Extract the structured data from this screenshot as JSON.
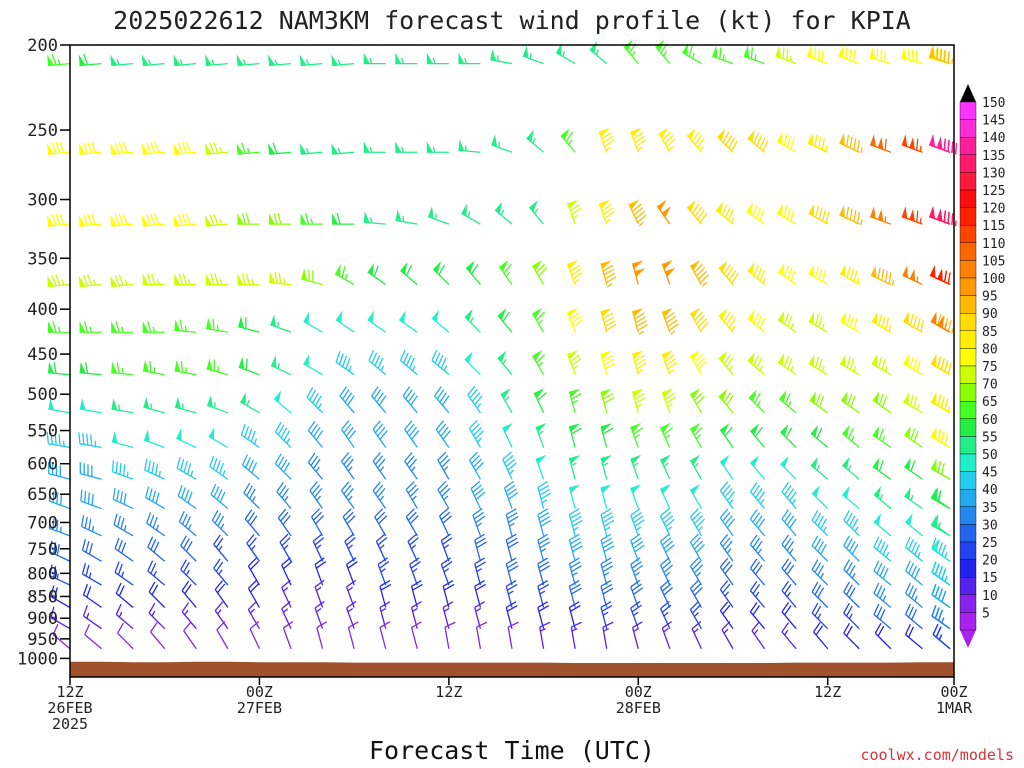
{
  "chart_data": {
    "type": "wind-barb",
    "title": "2025022612 NAM3KM forecast wind profile (kt) for KPIA",
    "xlabel": "Forecast Time (UTC)",
    "ylabel": "",
    "credit": "coolwx.com/models",
    "y_axis": {
      "scale": "pressure (log), inverted",
      "range_hPa": [
        1050,
        200
      ],
      "ticks": [
        200,
        250,
        300,
        350,
        400,
        450,
        500,
        550,
        600,
        650,
        700,
        750,
        800,
        850,
        900,
        950,
        1000
      ]
    },
    "x_axis": {
      "range_hours": [
        0,
        84
      ],
      "ticks": [
        {
          "hour": 0,
          "l1": "12Z",
          "l2": "26FEB",
          "l3": "2025"
        },
        {
          "hour": 18,
          "l1": "00Z",
          "l2": "27FEB",
          "l3": ""
        },
        {
          "hour": 36,
          "l1": "12Z",
          "l2": "",
          "l3": ""
        },
        {
          "hour": 54,
          "l1": "00Z",
          "l2": "28FEB",
          "l3": ""
        },
        {
          "hour": 72,
          "l1": "12Z",
          "l2": "",
          "l3": ""
        },
        {
          "hour": 90,
          "l1": "00Z",
          "l2": "1MAR",
          "l3": ""
        }
      ]
    },
    "barb_times_hours": [
      0,
      3,
      6,
      9,
      12,
      15,
      18,
      21,
      24,
      27,
      30,
      33,
      36,
      39,
      42,
      45,
      48,
      51,
      54,
      57,
      60,
      63,
      66,
      69,
      72,
      75,
      78,
      81,
      84,
      87,
      90
    ],
    "levels_hPa": [
      210,
      265,
      320,
      375,
      425,
      475,
      525,
      575,
      625,
      675,
      725,
      775,
      825,
      875,
      925,
      975
    ],
    "surface_pressure_hPa": [
      1009,
      1009,
      1010,
      1010,
      1009,
      1009,
      1010,
      1010,
      1010,
      1011,
      1011,
      1011,
      1011,
      1011,
      1011,
      1011,
      1012,
      1012,
      1012,
      1012,
      1012,
      1012,
      1012,
      1011,
      1011,
      1011,
      1011,
      1010,
      1010,
      1010,
      1010
    ],
    "wind": [
      {
        "level": 210,
        "speed_kt": [
          65,
          60,
          55,
          58,
          55,
          55,
          55,
          55,
          55,
          55,
          55,
          55,
          55,
          55,
          55,
          55,
          55,
          55,
          65,
          65,
          65,
          65,
          65,
          75,
          80,
          80,
          80,
          80,
          85,
          90,
          95
        ],
        "dir_deg": [
          265,
          265,
          265,
          265,
          265,
          265,
          265,
          265,
          265,
          265,
          270,
          270,
          270,
          270,
          280,
          290,
          300,
          310,
          320,
          320,
          300,
          290,
          290,
          290,
          290,
          290,
          285,
          285,
          285,
          290,
          290
        ]
      },
      {
        "level": 265,
        "speed_kt": [
          80,
          80,
          80,
          80,
          80,
          75,
          65,
          60,
          55,
          55,
          55,
          55,
          55,
          55,
          55,
          55,
          65,
          85,
          85,
          85,
          85,
          90,
          90,
          80,
          85,
          95,
          110,
          115,
          125,
          135,
          140
        ],
        "dir_deg": [
          265,
          265,
          265,
          265,
          265,
          265,
          265,
          265,
          265,
          265,
          270,
          270,
          270,
          275,
          290,
          310,
          320,
          340,
          340,
          330,
          320,
          315,
          310,
          300,
          295,
          295,
          290,
          290,
          290,
          290,
          290
        ]
      },
      {
        "level": 320,
        "speed_kt": [
          80,
          80,
          80,
          80,
          80,
          75,
          70,
          70,
          65,
          60,
          55,
          55,
          55,
          55,
          55,
          55,
          75,
          85,
          95,
          100,
          90,
          85,
          80,
          80,
          90,
          95,
          105,
          115,
          120,
          130,
          135
        ],
        "dir_deg": [
          265,
          265,
          265,
          265,
          265,
          265,
          270,
          270,
          270,
          270,
          275,
          280,
          290,
          300,
          310,
          320,
          340,
          340,
          335,
          325,
          320,
          310,
          305,
          300,
          300,
          295,
          290,
          290,
          290,
          290,
          290
        ]
      },
      {
        "level": 375,
        "speed_kt": [
          75,
          75,
          75,
          75,
          75,
          75,
          75,
          75,
          70,
          65,
          60,
          60,
          60,
          60,
          65,
          70,
          85,
          95,
          100,
          100,
          95,
          90,
          85,
          80,
          80,
          85,
          95,
          105,
          110,
          115,
          120
        ],
        "dir_deg": [
          265,
          265,
          265,
          270,
          270,
          270,
          270,
          275,
          285,
          300,
          305,
          310,
          315,
          320,
          325,
          330,
          340,
          345,
          345,
          340,
          330,
          320,
          310,
          305,
          300,
          300,
          295,
          295,
          295,
          295,
          295
        ]
      },
      {
        "level": 425,
        "speed_kt": [
          65,
          65,
          65,
          65,
          65,
          65,
          60,
          55,
          50,
          50,
          50,
          50,
          50,
          55,
          60,
          65,
          80,
          90,
          95,
          95,
          90,
          85,
          80,
          75,
          75,
          80,
          85,
          90,
          95,
          100,
          105
        ],
        "dir_deg": [
          270,
          270,
          270,
          270,
          275,
          280,
          285,
          290,
          300,
          305,
          305,
          305,
          310,
          315,
          320,
          330,
          340,
          345,
          345,
          340,
          330,
          320,
          310,
          305,
          300,
          300,
          300,
          300,
          300,
          300,
          300
        ]
      },
      {
        "level": 475,
        "speed_kt": [
          60,
          60,
          65,
          65,
          65,
          65,
          60,
          55,
          50,
          45,
          45,
          45,
          45,
          50,
          55,
          65,
          75,
          80,
          85,
          85,
          80,
          75,
          75,
          75,
          75,
          75,
          75,
          80,
          85,
          85,
          90
        ],
        "dir_deg": [
          275,
          275,
          275,
          280,
          280,
          285,
          290,
          295,
          300,
          305,
          310,
          310,
          310,
          315,
          320,
          330,
          340,
          345,
          345,
          340,
          330,
          320,
          310,
          305,
          300,
          300,
          300,
          300,
          300,
          300,
          300
        ]
      },
      {
        "level": 525,
        "speed_kt": [
          50,
          50,
          55,
          55,
          55,
          55,
          55,
          50,
          45,
          40,
          40,
          40,
          40,
          45,
          55,
          60,
          65,
          70,
          75,
          75,
          70,
          70,
          65,
          65,
          70,
          70,
          70,
          75,
          80,
          80,
          85
        ],
        "dir_deg": [
          280,
          280,
          280,
          285,
          285,
          290,
          300,
          310,
          315,
          320,
          320,
          320,
          320,
          325,
          330,
          335,
          345,
          345,
          345,
          340,
          330,
          320,
          315,
          310,
          305,
          305,
          305,
          300,
          300,
          300,
          300
        ]
      },
      {
        "level": 575,
        "speed_kt": [
          45,
          45,
          50,
          50,
          50,
          50,
          45,
          45,
          40,
          40,
          40,
          40,
          40,
          45,
          50,
          55,
          60,
          60,
          65,
          65,
          65,
          60,
          60,
          60,
          60,
          65,
          65,
          70,
          75,
          75,
          80
        ],
        "dir_deg": [
          280,
          280,
          285,
          290,
          295,
          300,
          305,
          315,
          320,
          325,
          325,
          325,
          325,
          330,
          335,
          340,
          345,
          345,
          340,
          335,
          330,
          325,
          320,
          315,
          310,
          310,
          305,
          305,
          300,
          300,
          300
        ]
      },
      {
        "level": 625,
        "speed_kt": [
          40,
          40,
          45,
          45,
          45,
          45,
          40,
          40,
          35,
          35,
          35,
          35,
          35,
          40,
          45,
          50,
          55,
          55,
          55,
          55,
          55,
          50,
          50,
          50,
          55,
          55,
          60,
          60,
          65,
          65,
          70
        ],
        "dir_deg": [
          285,
          285,
          290,
          295,
          300,
          305,
          310,
          315,
          320,
          325,
          325,
          325,
          330,
          330,
          335,
          340,
          345,
          345,
          340,
          335,
          330,
          325,
          320,
          315,
          310,
          310,
          305,
          305,
          300,
          300,
          300
        ]
      },
      {
        "level": 675,
        "speed_kt": [
          40,
          40,
          40,
          40,
          40,
          40,
          35,
          35,
          35,
          35,
          35,
          35,
          35,
          40,
          40,
          45,
          50,
          50,
          50,
          50,
          50,
          45,
          45,
          45,
          50,
          50,
          55,
          55,
          55,
          60,
          60
        ],
        "dir_deg": [
          290,
          290,
          295,
          300,
          305,
          310,
          315,
          320,
          325,
          325,
          325,
          330,
          330,
          335,
          340,
          345,
          345,
          345,
          340,
          335,
          330,
          325,
          320,
          320,
          315,
          310,
          310,
          305,
          305,
          300,
          300
        ]
      },
      {
        "level": 725,
        "speed_kt": [
          35,
          35,
          35,
          35,
          35,
          35,
          30,
          30,
          30,
          30,
          30,
          30,
          30,
          35,
          35,
          40,
          45,
          45,
          45,
          45,
          45,
          40,
          40,
          40,
          45,
          45,
          50,
          50,
          50,
          55,
          55
        ],
        "dir_deg": [
          290,
          295,
          300,
          305,
          310,
          315,
          320,
          325,
          330,
          330,
          330,
          330,
          335,
          340,
          345,
          345,
          345,
          345,
          340,
          335,
          330,
          325,
          320,
          320,
          315,
          315,
          310,
          310,
          305,
          305,
          300
        ]
      },
      {
        "level": 775,
        "speed_kt": [
          30,
          30,
          30,
          30,
          30,
          25,
          25,
          25,
          25,
          25,
          25,
          25,
          25,
          30,
          30,
          35,
          40,
          40,
          40,
          40,
          40,
          35,
          35,
          35,
          40,
          40,
          45,
          45,
          45,
          50,
          50
        ],
        "dir_deg": [
          295,
          300,
          305,
          310,
          315,
          320,
          325,
          330,
          335,
          335,
          335,
          335,
          340,
          345,
          345,
          345,
          345,
          345,
          340,
          335,
          330,
          325,
          320,
          320,
          315,
          315,
          310,
          310,
          305,
          305,
          305
        ]
      },
      {
        "level": 825,
        "speed_kt": [
          25,
          25,
          25,
          25,
          25,
          25,
          20,
          20,
          20,
          20,
          25,
          25,
          25,
          25,
          30,
          30,
          35,
          35,
          35,
          35,
          35,
          30,
          30,
          30,
          35,
          35,
          40,
          40,
          40,
          45,
          45
        ],
        "dir_deg": [
          295,
          300,
          305,
          310,
          315,
          320,
          330,
          335,
          340,
          340,
          340,
          340,
          340,
          345,
          345,
          345,
          345,
          345,
          340,
          335,
          330,
          325,
          320,
          320,
          315,
          315,
          310,
          310,
          305,
          305,
          305
        ]
      },
      {
        "level": 875,
        "speed_kt": [
          20,
          20,
          20,
          20,
          20,
          20,
          20,
          15,
          15,
          15,
          20,
          20,
          20,
          20,
          25,
          25,
          30,
          30,
          30,
          30,
          30,
          25,
          25,
          25,
          30,
          30,
          35,
          35,
          35,
          40,
          40
        ],
        "dir_deg": [
          300,
          305,
          310,
          315,
          320,
          325,
          330,
          335,
          340,
          340,
          345,
          345,
          345,
          345,
          345,
          345,
          345,
          345,
          340,
          335,
          330,
          325,
          320,
          320,
          315,
          315,
          310,
          310,
          305,
          305,
          305
        ]
      },
      {
        "level": 925,
        "speed_kt": [
          15,
          15,
          15,
          15,
          15,
          15,
          15,
          15,
          15,
          15,
          15,
          15,
          15,
          15,
          20,
          20,
          20,
          25,
          25,
          25,
          25,
          20,
          20,
          20,
          25,
          25,
          30,
          30,
          30,
          35,
          35
        ],
        "dir_deg": [
          300,
          305,
          310,
          315,
          320,
          325,
          330,
          335,
          340,
          340,
          345,
          345,
          345,
          345,
          345,
          345,
          345,
          345,
          340,
          335,
          330,
          325,
          320,
          320,
          315,
          315,
          310,
          310,
          305,
          305,
          305
        ]
      },
      {
        "level": 975,
        "speed_kt": [
          10,
          10,
          10,
          10,
          10,
          10,
          10,
          10,
          10,
          10,
          10,
          10,
          10,
          10,
          10,
          15,
          15,
          15,
          15,
          15,
          15,
          15,
          15,
          15,
          20,
          20,
          20,
          20,
          25,
          25,
          25
        ],
        "dir_deg": [
          310,
          310,
          315,
          320,
          325,
          330,
          335,
          340,
          345,
          345,
          345,
          345,
          350,
          350,
          350,
          350,
          350,
          350,
          345,
          340,
          335,
          330,
          325,
          320,
          320,
          315,
          315,
          310,
          310,
          310,
          310
        ]
      }
    ],
    "colorbar": {
      "labels": [
        150,
        145,
        140,
        135,
        130,
        125,
        120,
        115,
        110,
        105,
        100,
        95,
        90,
        85,
        80,
        75,
        70,
        65,
        60,
        55,
        50,
        45,
        40,
        35,
        30,
        25,
        20,
        15,
        10,
        5
      ],
      "colors": [
        "#ff33ff",
        "#ff2bd6",
        "#ff1f99",
        "#ff1a6b",
        "#ff1a3d",
        "#ff0d0d",
        "#ff2200",
        "#ff4400",
        "#ff6600",
        "#ff8000",
        "#ff9900",
        "#ffbb00",
        "#ffdd00",
        "#ffee00",
        "#ffff00",
        "#ccff00",
        "#88ff00",
        "#44ff22",
        "#22ee44",
        "#22ee88",
        "#22eecc",
        "#22ccee",
        "#22aaee",
        "#2288ee",
        "#2266ee",
        "#2244ee",
        "#2222ee",
        "#5522ee",
        "#8822ee",
        "#aa22ee"
      ],
      "top_arrow_color": "#000000",
      "bottom_arrow_color": "#aa22ee"
    },
    "terrain_color": "#a0522d",
    "grid": false
  }
}
